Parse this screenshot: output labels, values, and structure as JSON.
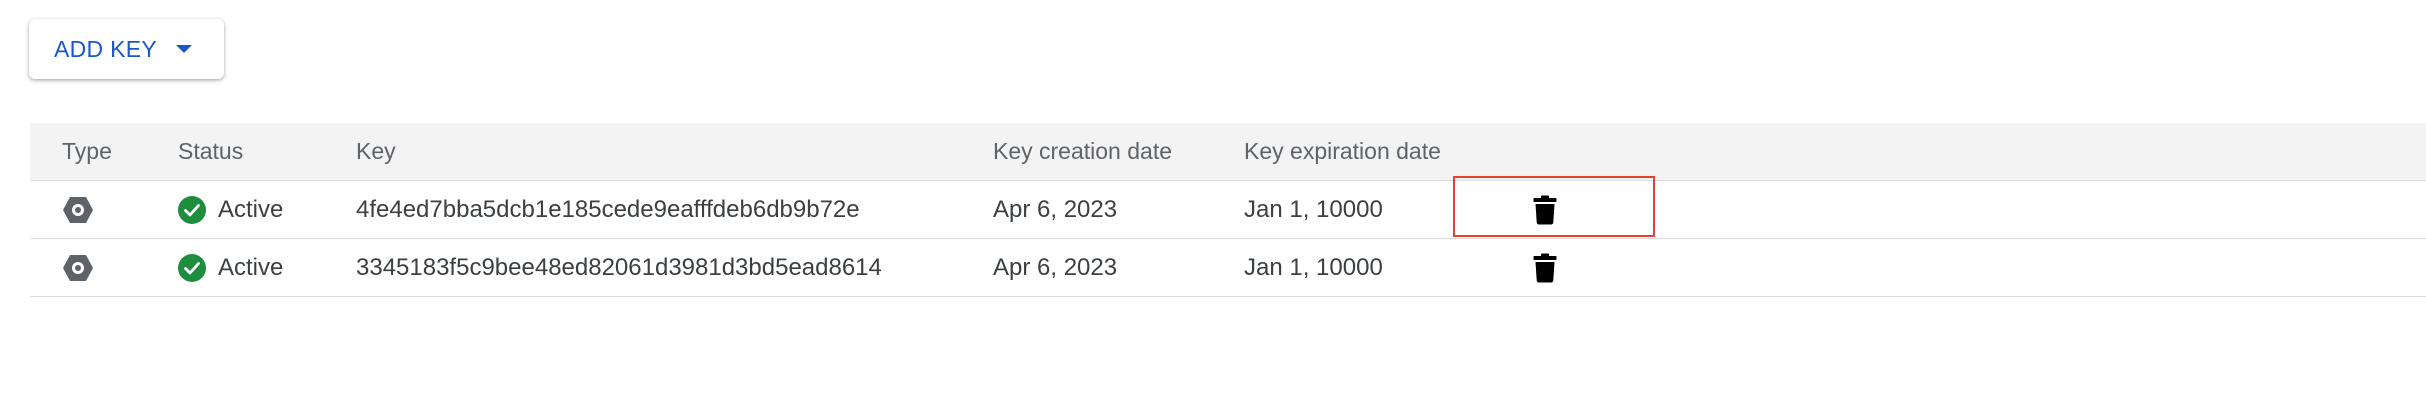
{
  "toolbar": {
    "add_key_label": "ADD KEY",
    "caret_icon": "caret-down-icon",
    "accent_color": "#1a58c9"
  },
  "table": {
    "columns": [
      "Type",
      "Status",
      "Key",
      "Key creation date",
      "Key expiration date",
      ""
    ],
    "rows": [
      {
        "type_icon": "key-type-hexagon-icon",
        "status_icon": "check-circle-icon",
        "status": "Active",
        "key": "4fe4ed7bba5dcb1e185cede9eafffdeb6db9b72e",
        "created": "Apr 6, 2023",
        "expires": "Jan 1, 10000",
        "action_icon": "trash-icon",
        "highlighted": true
      },
      {
        "type_icon": "key-type-hexagon-icon",
        "status_icon": "check-circle-icon",
        "status": "Active",
        "key": "3345183f5c9bee48ed82061d3981d3bd5ead8614",
        "created": "Apr 6, 2023",
        "expires": "Jan 1, 10000",
        "action_icon": "trash-icon",
        "highlighted": false
      }
    ]
  },
  "colors": {
    "status_active": "#1e8e3e",
    "highlight_border": "#e2452f",
    "header_background": "#f3f3f3"
  }
}
